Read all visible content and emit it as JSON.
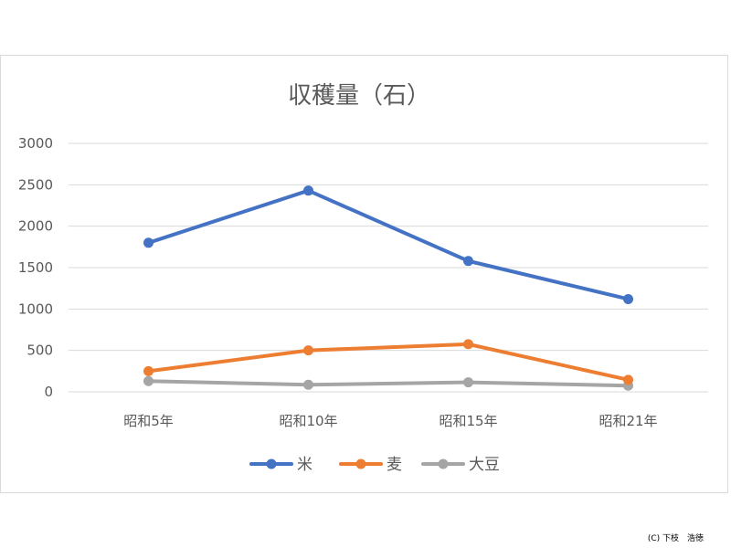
{
  "colors": {
    "rice": "#4472c4",
    "wheat": "#ed7d31",
    "soy": "#a5a5a5",
    "grid": "#d9d9d9",
    "text": "#595959"
  },
  "chart_data": {
    "type": "line",
    "title": "収穫量（石）",
    "categories": [
      "昭和5年",
      "昭和10年",
      "昭和15年",
      "昭和21年"
    ],
    "ylim": [
      0,
      3000
    ],
    "yticks": [
      0,
      500,
      1000,
      1500,
      2000,
      2500,
      3000
    ],
    "grid": true,
    "legend_position": "bottom",
    "series": [
      {
        "name": "米",
        "color": "#4472c4",
        "values": [
          1800,
          2430,
          1580,
          1120
        ]
      },
      {
        "name": "麦",
        "color": "#ed7d31",
        "values": [
          250,
          500,
          575,
          145
        ]
      },
      {
        "name": "大豆",
        "color": "#a5a5a5",
        "values": [
          130,
          85,
          115,
          75
        ]
      }
    ]
  },
  "credit": "(C) 下枝　浩徳"
}
